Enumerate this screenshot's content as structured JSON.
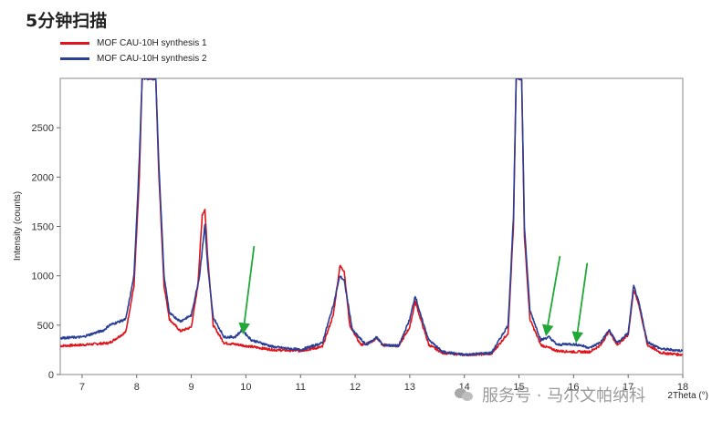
{
  "title": "5分钟扫描",
  "watermark": "服务号 · 马尔文帕纳科",
  "colors": {
    "series1": "#e0141b",
    "series2": "#2a3f96",
    "arrows": "#22a838"
  },
  "chart_data": {
    "type": "line",
    "xlabel": "2Theta (°)",
    "ylabel": "Intensity (counts)",
    "xlim": [
      6.6,
      18.0
    ],
    "ylim": [
      0,
      3000
    ],
    "xticks": [
      7,
      8,
      9,
      10,
      11,
      12,
      13,
      14,
      15,
      16,
      17,
      18
    ],
    "yticks": [
      0,
      500,
      1000,
      1500,
      2000,
      2500
    ],
    "legend": "top-left",
    "grid": false,
    "series": [
      {
        "name": "MOF CAU-10H synthesis 1",
        "color": "#e0141b",
        "points": [
          [
            6.6,
            290
          ],
          [
            7.0,
            300
          ],
          [
            7.5,
            320
          ],
          [
            7.8,
            430
          ],
          [
            7.95,
            900
          ],
          [
            8.05,
            2000
          ],
          [
            8.1,
            3000
          ],
          [
            8.35,
            3000
          ],
          [
            8.4,
            2100
          ],
          [
            8.5,
            900
          ],
          [
            8.6,
            560
          ],
          [
            8.8,
            440
          ],
          [
            9.0,
            480
          ],
          [
            9.12,
            900
          ],
          [
            9.2,
            1620
          ],
          [
            9.25,
            1670
          ],
          [
            9.3,
            1200
          ],
          [
            9.4,
            500
          ],
          [
            9.6,
            320
          ],
          [
            9.9,
            300
          ],
          [
            10.0,
            290
          ],
          [
            10.5,
            250
          ],
          [
            11.0,
            240
          ],
          [
            11.4,
            280
          ],
          [
            11.6,
            600
          ],
          [
            11.72,
            1100
          ],
          [
            11.8,
            1050
          ],
          [
            11.9,
            500
          ],
          [
            12.1,
            300
          ],
          [
            12.3,
            330
          ],
          [
            12.4,
            370
          ],
          [
            12.5,
            300
          ],
          [
            12.8,
            290
          ],
          [
            13.0,
            480
          ],
          [
            13.1,
            740
          ],
          [
            13.2,
            560
          ],
          [
            13.35,
            300
          ],
          [
            13.6,
            220
          ],
          [
            14.0,
            200
          ],
          [
            14.5,
            210
          ],
          [
            14.8,
            420
          ],
          [
            14.9,
            1500
          ],
          [
            14.95,
            3000
          ],
          [
            15.05,
            3000
          ],
          [
            15.1,
            1400
          ],
          [
            15.2,
            560
          ],
          [
            15.4,
            300
          ],
          [
            15.7,
            240
          ],
          [
            16.0,
            230
          ],
          [
            16.3,
            230
          ],
          [
            16.5,
            300
          ],
          [
            16.65,
            440
          ],
          [
            16.8,
            300
          ],
          [
            17.0,
            400
          ],
          [
            17.1,
            860
          ],
          [
            17.2,
            700
          ],
          [
            17.35,
            300
          ],
          [
            17.6,
            220
          ],
          [
            18.0,
            200
          ]
        ]
      },
      {
        "name": "MOF CAU-10H synthesis 2",
        "color": "#2a3f96",
        "points": [
          [
            6.6,
            370
          ],
          [
            7.0,
            380
          ],
          [
            7.4,
            450
          ],
          [
            7.5,
            500
          ],
          [
            7.8,
            560
          ],
          [
            7.95,
            1000
          ],
          [
            8.05,
            2200
          ],
          [
            8.1,
            3000
          ],
          [
            8.35,
            3000
          ],
          [
            8.4,
            2200
          ],
          [
            8.5,
            1000
          ],
          [
            8.6,
            620
          ],
          [
            8.8,
            540
          ],
          [
            9.0,
            600
          ],
          [
            9.15,
            1000
          ],
          [
            9.25,
            1520
          ],
          [
            9.3,
            1100
          ],
          [
            9.4,
            580
          ],
          [
            9.6,
            380
          ],
          [
            9.8,
            380
          ],
          [
            9.93,
            450
          ],
          [
            10.1,
            350
          ],
          [
            10.5,
            280
          ],
          [
            11.0,
            250
          ],
          [
            11.4,
            320
          ],
          [
            11.6,
            700
          ],
          [
            11.72,
            1000
          ],
          [
            11.8,
            950
          ],
          [
            11.95,
            450
          ],
          [
            12.2,
            300
          ],
          [
            12.35,
            360
          ],
          [
            12.4,
            380
          ],
          [
            12.5,
            300
          ],
          [
            12.8,
            290
          ],
          [
            13.0,
            560
          ],
          [
            13.1,
            800
          ],
          [
            13.2,
            600
          ],
          [
            13.35,
            350
          ],
          [
            13.6,
            230
          ],
          [
            14.0,
            200
          ],
          [
            14.5,
            220
          ],
          [
            14.8,
            500
          ],
          [
            14.9,
            1600
          ],
          [
            14.95,
            3000
          ],
          [
            15.05,
            3000
          ],
          [
            15.1,
            1500
          ],
          [
            15.2,
            650
          ],
          [
            15.4,
            350
          ],
          [
            15.55,
            380
          ],
          [
            15.7,
            300
          ],
          [
            15.9,
            310
          ],
          [
            16.1,
            300
          ],
          [
            16.3,
            270
          ],
          [
            16.5,
            330
          ],
          [
            16.65,
            450
          ],
          [
            16.8,
            320
          ],
          [
            17.0,
            420
          ],
          [
            17.1,
            900
          ],
          [
            17.2,
            720
          ],
          [
            17.35,
            330
          ],
          [
            17.6,
            260
          ],
          [
            18.0,
            240
          ]
        ]
      }
    ],
    "annotations": [
      {
        "type": "arrow",
        "target": [
          9.95,
          430
        ],
        "from": [
          10.15,
          1300
        ]
      },
      {
        "type": "arrow",
        "target": [
          15.5,
          410
        ],
        "from": [
          15.75,
          1200
        ]
      },
      {
        "type": "arrow",
        "target": [
          16.05,
          340
        ],
        "from": [
          16.25,
          1130
        ]
      }
    ]
  }
}
